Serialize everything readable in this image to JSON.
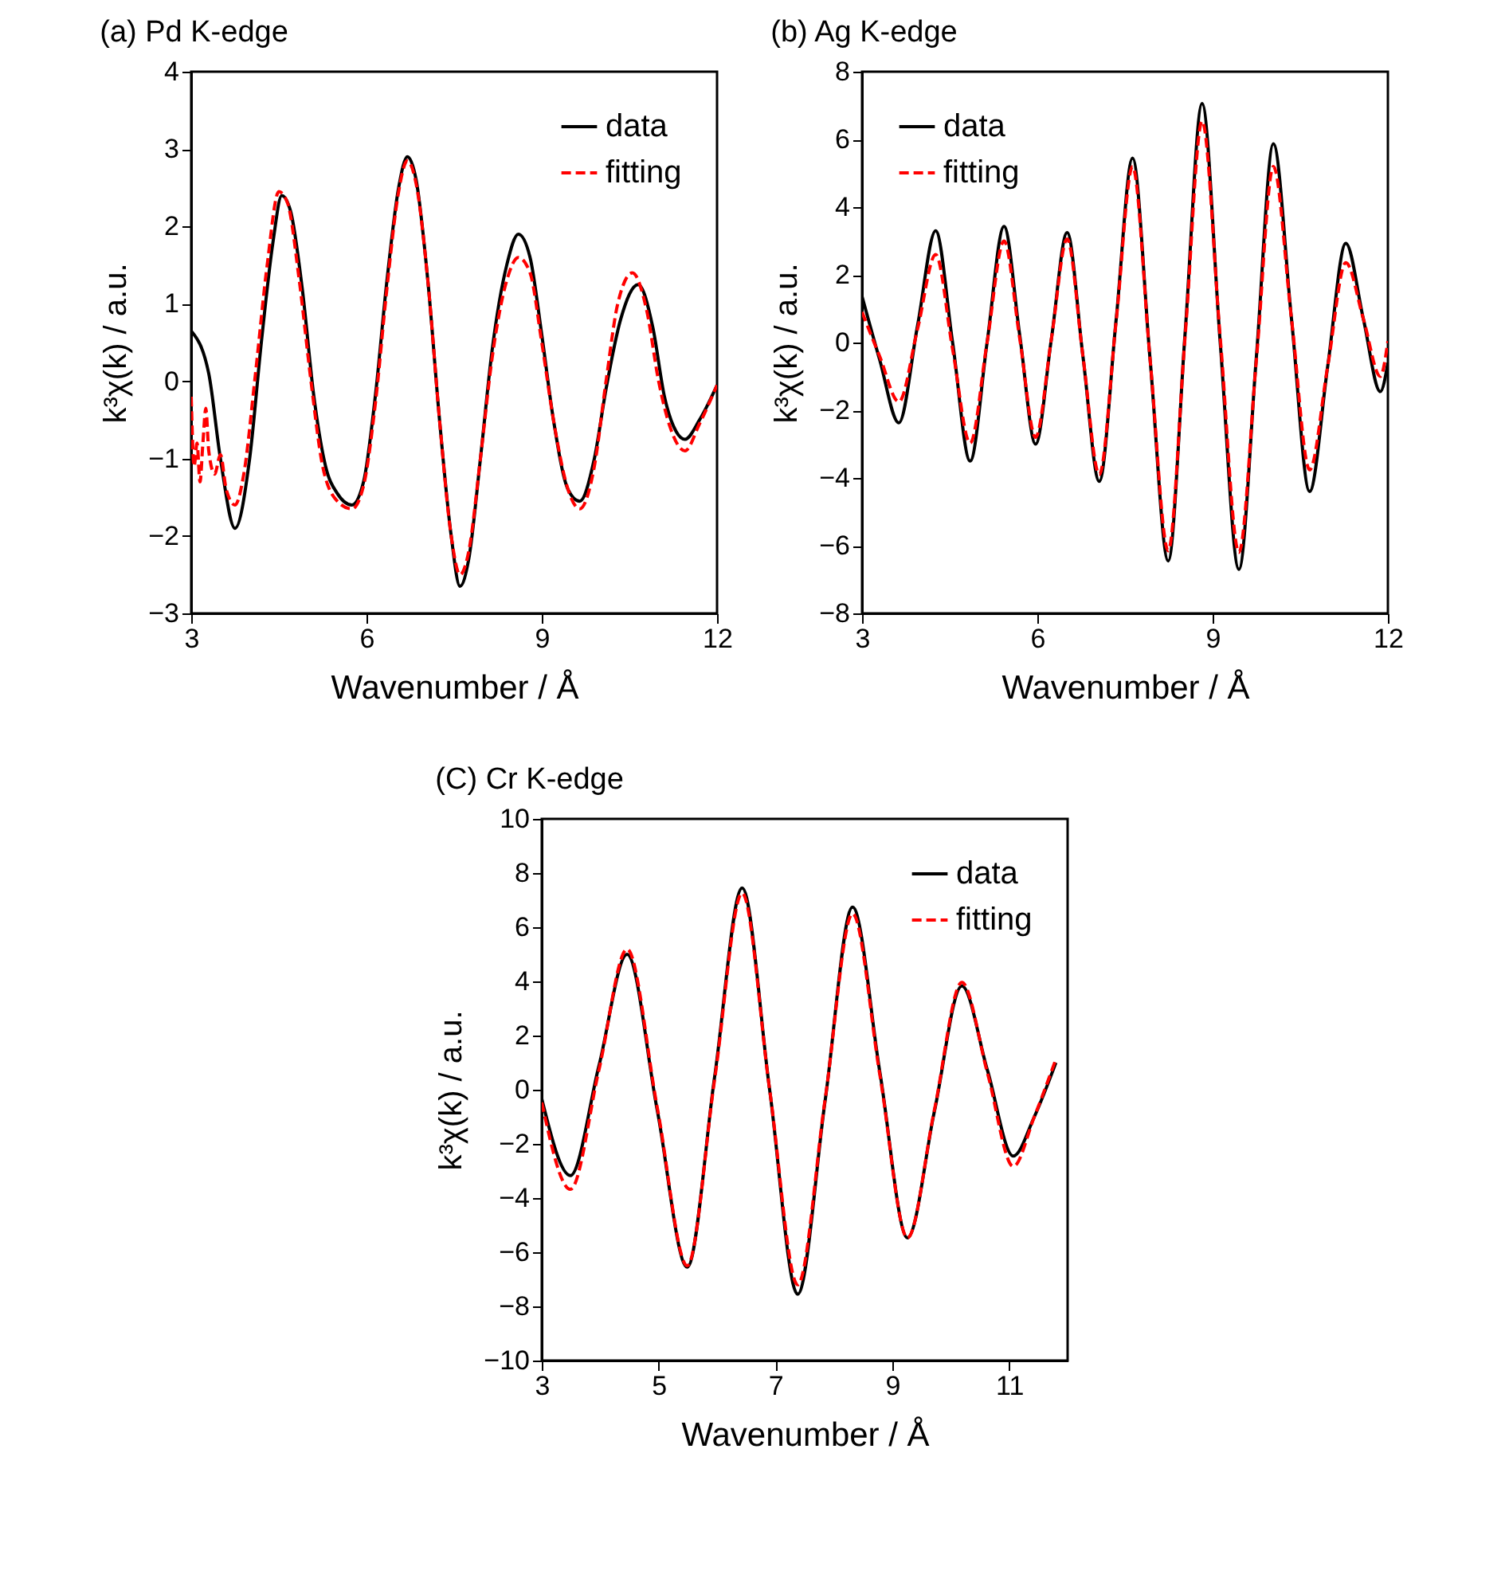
{
  "chart_data": [
    {
      "type": "line",
      "title": "(a) Pd K-edge",
      "xlabel": "Wavenumber / Å",
      "ylabel": "k³χ(k) / a.u.",
      "xlim": [
        3,
        12
      ],
      "ylim": [
        -3,
        4
      ],
      "xticks": [
        3,
        6,
        9,
        12
      ],
      "yticks": [
        -3,
        -2,
        -1,
        0,
        1,
        2,
        3,
        4
      ],
      "legend": "top right",
      "series": [
        {
          "name": "data",
          "color": "#000000",
          "line_style": "solid",
          "x": [
            3,
            3.3,
            3.5,
            3.75,
            4.0,
            4.2,
            4.4,
            4.55,
            4.7,
            4.9,
            5.1,
            5.3,
            5.5,
            5.75,
            5.95,
            6.15,
            6.35,
            6.55,
            6.7,
            6.85,
            7.05,
            7.25,
            7.45,
            7.6,
            7.75,
            7.95,
            8.15,
            8.4,
            8.6,
            8.8,
            9.0,
            9.2,
            9.45,
            9.65,
            9.9,
            10.1,
            10.35,
            10.65,
            10.9,
            11.1,
            11.3,
            11.45,
            11.7,
            12
          ],
          "values": [
            0.65,
            0.1,
            -1.0,
            -1.9,
            -1.0,
            0.5,
            1.8,
            2.4,
            2.2,
            1.2,
            -0.2,
            -1.1,
            -1.45,
            -1.6,
            -1.3,
            -0.2,
            1.3,
            2.5,
            2.9,
            2.6,
            1.3,
            -0.5,
            -2.0,
            -2.65,
            -2.3,
            -1.0,
            0.4,
            1.5,
            1.9,
            1.6,
            0.6,
            -0.5,
            -1.4,
            -1.55,
            -1.0,
            -0.1,
            0.8,
            1.25,
            0.7,
            -0.2,
            -0.65,
            -0.75,
            -0.5,
            -0.05
          ]
        },
        {
          "name": "fitting",
          "color": "#ff0000",
          "line_style": "dashed",
          "x": [
            3,
            3.05,
            3.1,
            3.15,
            3.2,
            3.25,
            3.3,
            3.4,
            3.5,
            3.6,
            3.75,
            3.9,
            4.1,
            4.3,
            4.5,
            4.65,
            4.85,
            5.05,
            5.25,
            5.5,
            5.75,
            5.95,
            6.15,
            6.35,
            6.55,
            6.7,
            6.85,
            7.05,
            7.25,
            7.45,
            7.6,
            7.75,
            7.95,
            8.15,
            8.4,
            8.6,
            8.8,
            9.0,
            9.2,
            9.45,
            9.65,
            9.9,
            10.1,
            10.3,
            10.55,
            10.8,
            11.0,
            11.2,
            11.45,
            11.7,
            12
          ],
          "values": [
            -0.2,
            -1.1,
            -0.8,
            -1.3,
            -0.8,
            -0.35,
            -0.9,
            -1.2,
            -0.95,
            -1.4,
            -1.6,
            -1.2,
            0.1,
            1.5,
            2.45,
            2.3,
            1.3,
            0,
            -1.1,
            -1.55,
            -1.65,
            -1.35,
            -0.3,
            1.2,
            2.45,
            2.85,
            2.55,
            1.3,
            -0.5,
            -2.0,
            -2.5,
            -2.2,
            -1.0,
            0.3,
            1.3,
            1.6,
            1.4,
            0.5,
            -0.5,
            -1.4,
            -1.65,
            -1.1,
            0,
            1.0,
            1.4,
            0.9,
            0,
            -0.6,
            -0.9,
            -0.55,
            -0.05
          ]
        }
      ]
    },
    {
      "type": "line",
      "title": "(b) Ag K-edge",
      "xlabel": "Wavenumber / Å",
      "ylabel": "k³χ(k) / a.u.",
      "xlim": [
        3,
        12
      ],
      "ylim": [
        -8,
        8
      ],
      "xticks": [
        3,
        6,
        9,
        12
      ],
      "yticks": [
        -8,
        -6,
        -4,
        -2,
        0,
        2,
        4,
        6,
        8
      ],
      "legend": "top left",
      "series": [
        {
          "name": "data",
          "color": "#000000",
          "line_style": "solid",
          "x": [
            3,
            3.3,
            3.63,
            3.95,
            4.26,
            4.55,
            4.85,
            5.14,
            5.43,
            5.7,
            5.97,
            6.24,
            6.51,
            6.78,
            7.06,
            7.35,
            7.63,
            7.93,
            8.24,
            8.53,
            8.82,
            9.13,
            9.45,
            9.75,
            10.04,
            10.35,
            10.66,
            10.97,
            11.28,
            11.58,
            11.87,
            12
          ],
          "values": [
            1.36,
            -0.5,
            -2.37,
            0.5,
            3.3,
            0,
            -3.5,
            0,
            3.43,
            0.2,
            -3.0,
            0.1,
            3.25,
            -0.4,
            -4.1,
            0.7,
            5.45,
            -0.5,
            -6.45,
            0.3,
            7.06,
            0,
            -6.7,
            -0.4,
            5.87,
            0.7,
            -4.4,
            -0.7,
            2.93,
            0.7,
            -1.45,
            -0.6
          ]
        },
        {
          "name": "fitting",
          "color": "#ff0000",
          "line_style": "dashed",
          "x": [
            3,
            3.3,
            3.63,
            3.95,
            4.26,
            4.55,
            4.85,
            5.14,
            5.43,
            5.7,
            5.97,
            6.24,
            6.51,
            6.78,
            7.06,
            7.35,
            7.63,
            7.93,
            8.24,
            8.53,
            8.82,
            9.13,
            9.45,
            9.75,
            10.04,
            10.35,
            10.66,
            10.97,
            11.28,
            11.58,
            11.87,
            12
          ],
          "values": [
            0.9,
            -0.4,
            -1.75,
            0.4,
            2.6,
            -0.2,
            -2.97,
            0,
            3.0,
            0.1,
            -2.8,
            0.1,
            3.06,
            -0.4,
            -3.9,
            0.65,
            5.2,
            -0.5,
            -6.15,
            0.2,
            6.54,
            0.15,
            -6.2,
            -0.5,
            5.2,
            0.7,
            -3.76,
            -0.7,
            2.36,
            0.7,
            -1.0,
            0.04
          ]
        }
      ]
    },
    {
      "type": "line",
      "title": "(C) Cr K-edge",
      "xlabel": "Wavenumber / Å",
      "ylabel": "k³χ(k) / a.u.",
      "xlim": [
        3,
        12
      ],
      "ylim": [
        -10,
        10
      ],
      "xticks": [
        3,
        5,
        7,
        9,
        11
      ],
      "yticks": [
        -10,
        -8,
        -6,
        -4,
        -2,
        0,
        2,
        4,
        6,
        8,
        10
      ],
      "legend": "top right",
      "series": [
        {
          "name": "data",
          "color": "#000000",
          "line_style": "solid",
          "x": [
            3,
            3.49,
            3.98,
            4.46,
            4.98,
            5.49,
            5.96,
            6.43,
            6.9,
            7.38,
            7.85,
            8.32,
            8.79,
            9.26,
            9.72,
            10.19,
            10.63,
            11.07,
            11.43,
            11.8
          ],
          "values": [
            -0.34,
            -3.17,
            0.9,
            5.0,
            -0.8,
            -6.55,
            0.5,
            7.45,
            0,
            -7.55,
            -0.4,
            6.74,
            0.6,
            -5.47,
            -0.8,
            3.83,
            0.7,
            -2.45,
            -1.0,
            1.0
          ]
        },
        {
          "name": "fitting",
          "color": "#ff0000",
          "line_style": "dashed",
          "x": [
            3,
            3.49,
            3.98,
            4.46,
            4.98,
            5.49,
            5.96,
            6.43,
            6.9,
            7.38,
            7.85,
            8.32,
            8.79,
            9.26,
            9.72,
            10.19,
            10.63,
            11.07,
            11.43,
            11.8
          ],
          "values": [
            -0.47,
            -3.68,
            0.75,
            5.19,
            -0.7,
            -6.5,
            0.4,
            7.26,
            0,
            -7.2,
            -0.35,
            6.5,
            0.5,
            -5.47,
            -0.75,
            3.96,
            0.6,
            -2.83,
            -1.0,
            1.13
          ]
        }
      ]
    }
  ]
}
